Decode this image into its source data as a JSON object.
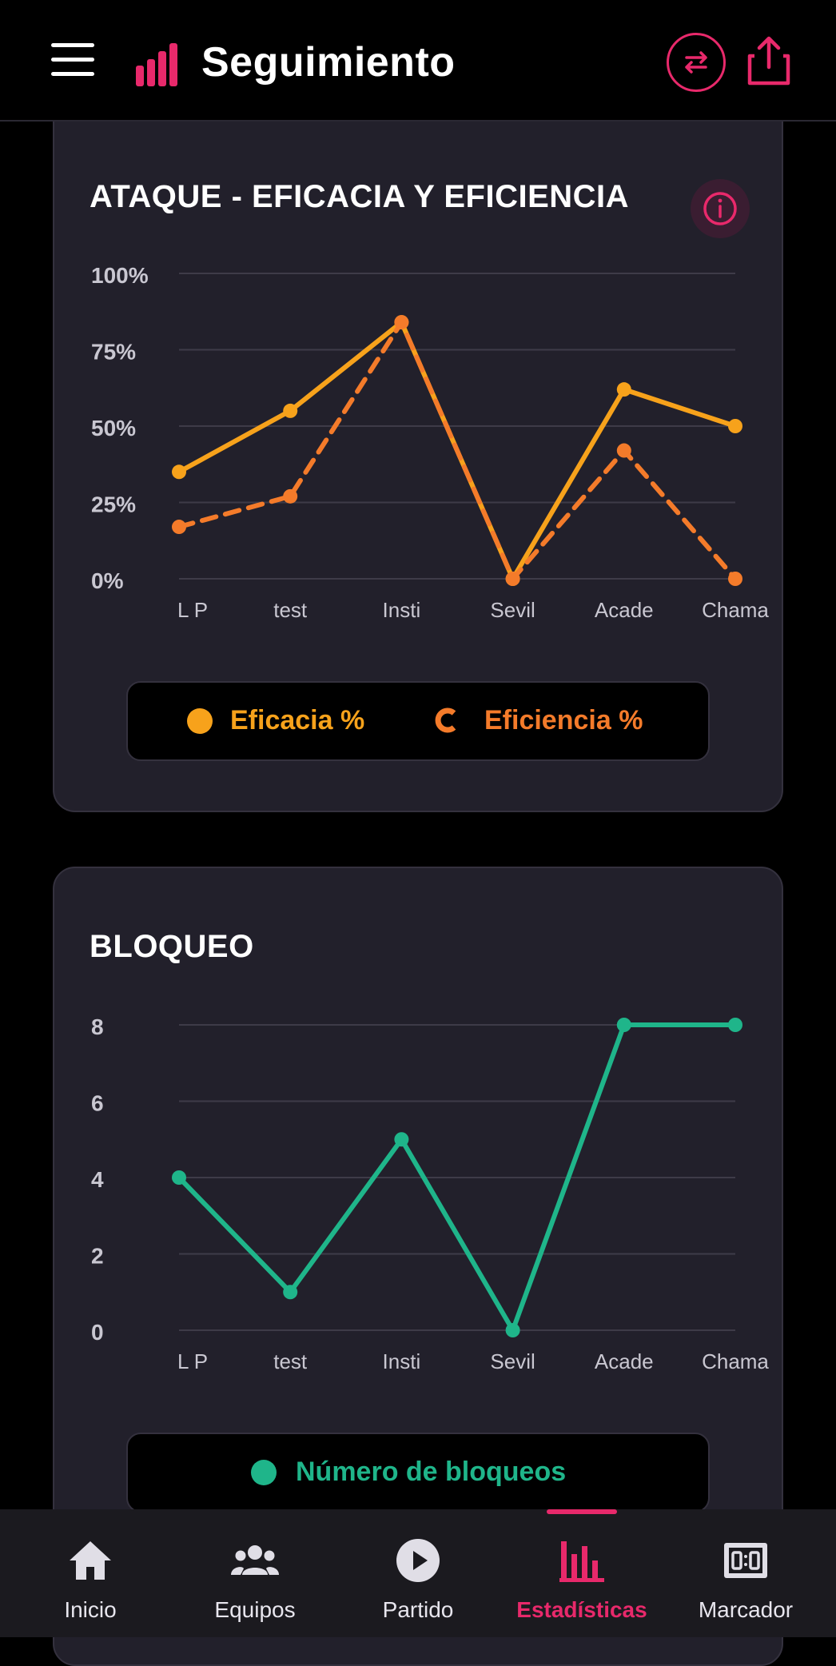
{
  "header": {
    "title": "Seguimiento",
    "menu_icon": "menu-icon",
    "logo_icon": "bar-chart-logo-icon",
    "swap_icon": "swap-arrows-icon",
    "share_icon": "share-icon"
  },
  "colors": {
    "accent": "#e8296b",
    "eficacia": "#f7a21b",
    "eficiencia": "#f47b2a",
    "bloqueos": "#1fb58a",
    "card": "#22202b"
  },
  "chart_data": [
    {
      "type": "line",
      "title": "ATAQUE - EFICACIA Y EFICIENCIA",
      "categories": [
        "L P",
        "test",
        "Insti",
        "Sevil",
        "Acade",
        "Chama"
      ],
      "y_ticks": [
        "0%",
        "25%",
        "50%",
        "75%",
        "100%"
      ],
      "ylim": [
        0,
        100
      ],
      "grid": true,
      "legend_position": "bottom",
      "series": [
        {
          "name": "Eficacia %",
          "values": [
            35,
            55,
            84,
            0,
            62,
            50
          ],
          "style": "solid",
          "color": "#f7a21b"
        },
        {
          "name": "Eficiencia %",
          "values": [
            17,
            27,
            84,
            0,
            42,
            0
          ],
          "style": "dashed",
          "color": "#f47b2a"
        }
      ]
    },
    {
      "type": "line",
      "title": "BLOQUEO",
      "categories": [
        "L P",
        "test",
        "Insti",
        "Sevil",
        "Acade",
        "Chama"
      ],
      "y_ticks": [
        "0",
        "2",
        "4",
        "6",
        "8"
      ],
      "ylim": [
        0,
        8
      ],
      "grid": true,
      "legend_position": "bottom",
      "series": [
        {
          "name": "Número de bloqueos",
          "values": [
            4,
            1,
            5,
            0,
            8,
            8
          ],
          "style": "solid",
          "color": "#1fb58a"
        }
      ]
    }
  ],
  "nav": {
    "items": [
      {
        "label": "Inicio",
        "icon": "home-icon",
        "active": false
      },
      {
        "label": "Equipos",
        "icon": "group-icon",
        "active": false
      },
      {
        "label": "Partido",
        "icon": "play-circle-icon",
        "active": false
      },
      {
        "label": "Estadísticas",
        "icon": "bar-chart-icon",
        "active": true
      },
      {
        "label": "Marcador",
        "icon": "scoreboard-icon",
        "active": false
      }
    ]
  }
}
